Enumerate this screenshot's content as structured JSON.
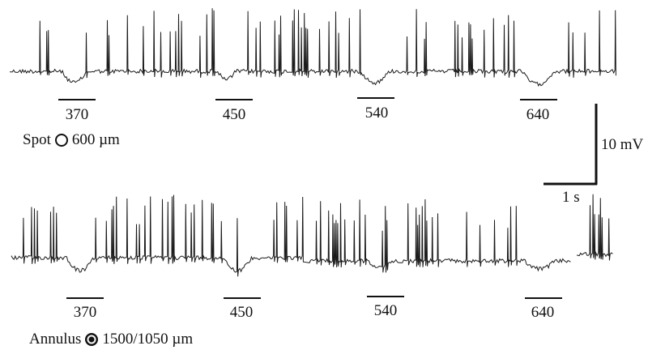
{
  "panels": [
    {
      "condition_label": "Spot",
      "condition_icon": "open-circle-icon",
      "condition_size": "600 µm",
      "stimuli": [
        {
          "label": "370"
        },
        {
          "label": "450"
        },
        {
          "label": "540"
        },
        {
          "label": "640"
        }
      ]
    },
    {
      "condition_label": "Annulus",
      "condition_icon": "filled-annulus-icon",
      "condition_size": "1500/1050 µm",
      "stimuli": [
        {
          "label": "370"
        },
        {
          "label": "450"
        },
        {
          "label": "540"
        },
        {
          "label": "640"
        }
      ]
    }
  ],
  "scale_bar": {
    "vertical_label": "10 mV",
    "horizontal_label": "1 s"
  },
  "colors": {
    "trace": "#1a1a1a",
    "text": "#111111",
    "background": "#ffffff"
  }
}
